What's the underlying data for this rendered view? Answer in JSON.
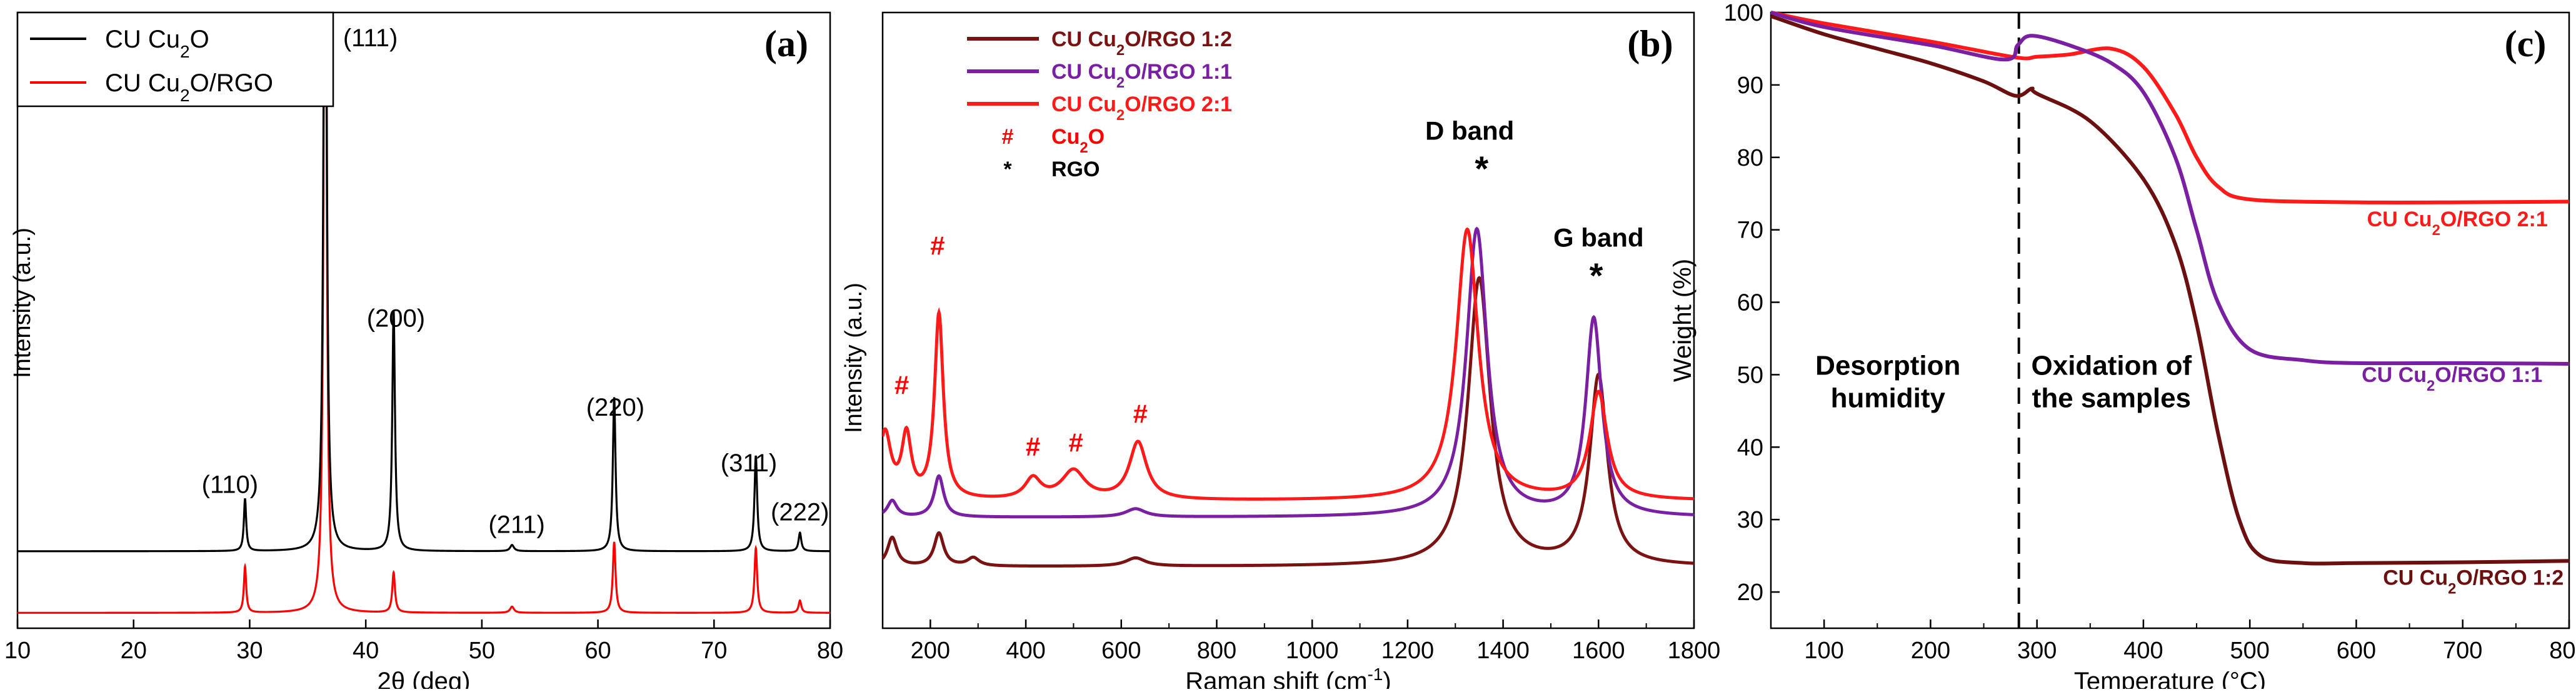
{
  "chart_data": [
    {
      "type": "line",
      "panel_label": "(a)",
      "xlabel": "2θ (deg)",
      "ylabel": "Intensity (a.u.)",
      "xlim": [
        10,
        80
      ],
      "ylim": [
        -0.05,
        1.95
      ],
      "xticks": [
        10,
        20,
        30,
        40,
        50,
        60,
        70,
        80
      ],
      "legend": "top-left",
      "series": [
        {
          "name": "CU Cu₂O",
          "color": "#000000",
          "baseline": 0.2,
          "peaks": [
            [
              29.6,
              0.17,
              0.12
            ],
            [
              36.5,
              2.9,
              0.14
            ],
            [
              42.4,
              0.78,
              0.14
            ],
            [
              52.6,
              0.02,
              0.2
            ],
            [
              61.4,
              0.5,
              0.14
            ],
            [
              73.6,
              0.31,
              0.14
            ],
            [
              77.4,
              0.06,
              0.14
            ]
          ]
        },
        {
          "name": "CU Cu₂O/RGO",
          "color": "#ff0000",
          "baseline": 0.0,
          "peaks": [
            [
              29.6,
              0.15,
              0.12
            ],
            [
              36.5,
              2.9,
              0.14
            ],
            [
              42.4,
              0.13,
              0.14
            ],
            [
              52.6,
              0.02,
              0.2
            ],
            [
              61.4,
              0.23,
              0.14
            ],
            [
              73.6,
              0.21,
              0.14
            ],
            [
              77.4,
              0.04,
              0.14
            ]
          ]
        }
      ],
      "annotations": [
        {
          "text": "(111)",
          "x": 40.4,
          "y": 1.84
        },
        {
          "text": "(200)",
          "x": 42.6,
          "y": 0.93
        },
        {
          "text": "(220)",
          "x": 61.5,
          "y": 0.64
        },
        {
          "text": "(311)",
          "x": 73.0,
          "y": 0.46
        },
        {
          "text": "(110)",
          "x": 28.3,
          "y": 0.39
        },
        {
          "text": "(211)",
          "x": 53.0,
          "y": 0.26
        },
        {
          "text": "(222)",
          "x": 77.4,
          "y": 0.3
        }
      ]
    },
    {
      "type": "line",
      "panel_label": "(b)",
      "xlabel": "Raman shift (cm⁻¹)",
      "ylabel": "Intensity (a.u.)",
      "xlim": [
        100,
        1800
      ],
      "ylim": [
        -0.05,
        1.45
      ],
      "xticks": [
        200,
        400,
        600,
        800,
        1000,
        1200,
        1400,
        1600,
        1800
      ],
      "legend": "top-left",
      "series": [
        {
          "name": "CU Cu₂O/RGO 1:2",
          "color": "#7a1212",
          "baseline": 0.1,
          "peaks": [
            [
              120,
              0.07,
              12
            ],
            [
              218,
              0.08,
              12
            ],
            [
              290,
              0.02,
              15
            ],
            [
              630,
              0.02,
              25
            ],
            [
              1350,
              0.7,
              28
            ],
            [
              1600,
              0.46,
              22
            ]
          ]
        },
        {
          "name": "CU Cu₂O/RGO 1:1",
          "color": "#7b1fa2",
          "baseline": 0.22,
          "peaks": [
            [
              120,
              0.04,
              12
            ],
            [
              218,
              0.1,
              12
            ],
            [
              630,
              0.02,
              25
            ],
            [
              1345,
              0.7,
              26
            ],
            [
              1590,
              0.48,
              20
            ]
          ]
        },
        {
          "name": "CU Cu₂O/RGO 2:1",
          "color": "#ff1a1a",
          "baseline": 0.26,
          "peaks": [
            [
              105,
              0.16,
              15
            ],
            [
              150,
              0.15,
              12
            ],
            [
              218,
              0.45,
              11
            ],
            [
              415,
              0.05,
              20
            ],
            [
              500,
              0.07,
              30
            ],
            [
              635,
              0.14,
              22
            ],
            [
              1325,
              0.66,
              28
            ],
            [
              1600,
              0.26,
              22
            ]
          ]
        }
      ],
      "legend_symbols": [
        {
          "symbol": "#",
          "label": "Cu₂O",
          "color": "#ff0000"
        },
        {
          "symbol": "*",
          "label": "RGO",
          "color": "#000000"
        }
      ],
      "annotations": [
        {
          "text": "D band",
          "x": 1330,
          "y": 1.14
        },
        {
          "text": "G band",
          "x": 1600,
          "y": 0.88
        }
      ],
      "hash_marks": [
        [
          140,
          0.52
        ],
        [
          215,
          0.86
        ],
        [
          415,
          0.37
        ],
        [
          505,
          0.38
        ],
        [
          640,
          0.45
        ]
      ],
      "star_marks": [
        [
          1355,
          1.04
        ],
        [
          1595,
          0.78
        ]
      ]
    },
    {
      "type": "line",
      "panel_label": "(c)",
      "xlabel": "Temperature (°C)",
      "ylabel": "Weight (%)",
      "xlim": [
        50,
        800
      ],
      "ylim": [
        15,
        100
      ],
      "xticks": [
        100,
        200,
        300,
        400,
        500,
        600,
        700,
        800
      ],
      "yticks": [
        20,
        30,
        40,
        50,
        60,
        70,
        80,
        90,
        100
      ],
      "vline_x": 283,
      "series": [
        {
          "name": "CU Cu₂O/RGO 2:1",
          "color": "#ff1a1a",
          "x": [
            50,
            100,
            200,
            280,
            300,
            330,
            370,
            400,
            430,
            450,
            470,
            500,
            600,
            700,
            800
          ],
          "y": [
            100,
            98.5,
            96,
            93.8,
            93.9,
            94.2,
            95,
            92.5,
            86,
            80,
            76,
            74.2,
            73.8,
            73.8,
            73.9
          ]
        },
        {
          "name": "CU Cu₂O/RGO 1:1",
          "color": "#7b1fa2",
          "x": [
            50,
            100,
            200,
            270,
            282,
            295,
            330,
            370,
            400,
            430,
            450,
            470,
            500,
            550,
            600,
            700,
            800
          ],
          "y": [
            100,
            98,
            95.5,
            93.5,
            95.5,
            96.8,
            95.5,
            93,
            89,
            80,
            70,
            60,
            53.5,
            52,
            51.6,
            51.6,
            51.5
          ]
        },
        {
          "name": "CU Cu₂O/RGO 1:2",
          "color": "#6b0f0f",
          "x": [
            50,
            100,
            150,
            200,
            250,
            280,
            295,
            300,
            350,
            400,
            430,
            450,
            470,
            490,
            510,
            550,
            600,
            700,
            800
          ],
          "y": [
            99.5,
            97,
            95,
            93,
            90.5,
            88.5,
            89.5,
            88.8,
            85,
            77,
            68,
            57,
            42,
            30,
            25,
            24,
            24,
            24.1,
            24.3
          ]
        }
      ],
      "annotations": [
        {
          "text": "CU Cu₂O/RGO 2:1",
          "x": 695,
          "y": 70.5,
          "color": "#ff1a1a"
        },
        {
          "text": "CU Cu₂O/RGO 1:1",
          "x": 690,
          "y": 49,
          "color": "#7b1fa2"
        },
        {
          "text": "CU Cu₂O/RGO 1:2",
          "x": 710,
          "y": 21,
          "color": "#6b0f0f"
        },
        {
          "text": "Desorption\nhumidity",
          "x": 160,
          "y": 50
        },
        {
          "text": "Oxidation of\nthe samples",
          "x": 370,
          "y": 50
        }
      ]
    }
  ]
}
